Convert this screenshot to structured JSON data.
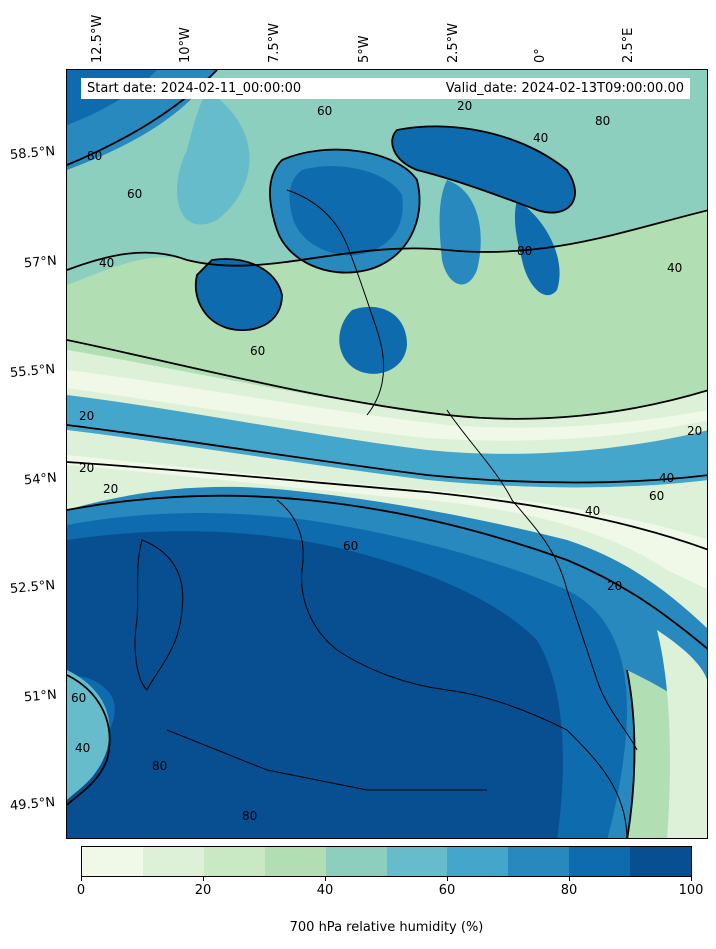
{
  "header": {
    "start_date": "Start date: 2024-02-11_00:00:00",
    "valid_date": "Valid_date: 2024-02-13T09:00:00.00"
  },
  "longitude_labels": [
    "12.5°W",
    "10°W",
    "7.5°W",
    "5°W",
    "2.5°W",
    "0°",
    "2.5°E"
  ],
  "latitude_labels": [
    "58.5°N",
    "57°N",
    "55.5°N",
    "54°N",
    "52.5°N",
    "51°N",
    "49.5°N"
  ],
  "contour_labels": [
    "20",
    "40",
    "60",
    "80"
  ],
  "colorbar": {
    "title": "700 hPa relative humidity (%)",
    "ticks": [
      "0",
      "20",
      "40",
      "60",
      "80",
      "100"
    ],
    "colors": [
      "#f0f9e8",
      "#ddf1d9",
      "#c8e9c3",
      "#b1dfb3",
      "#8ccfbf",
      "#67bccb",
      "#45a6cc",
      "#2889be",
      "#0e6bad",
      "#084f91"
    ]
  },
  "colors": {
    "very_dry": "#f0f9e8",
    "dry": "#ddf1d9",
    "mid": "#8ccfbf",
    "moist": "#2889be",
    "very_moist": "#084f91"
  }
}
